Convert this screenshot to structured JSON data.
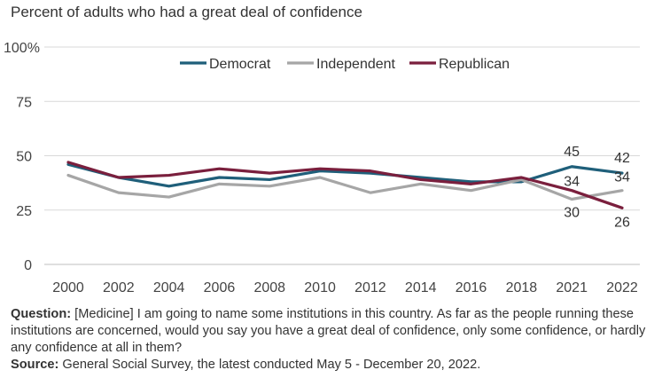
{
  "title": "Percent of adults who had a great deal of confidence",
  "chart_data": {
    "type": "line",
    "categories": [
      "2000",
      "2002",
      "2004",
      "2006",
      "2008",
      "2010",
      "2012",
      "2014",
      "2016",
      "2018",
      "2021",
      "2022"
    ],
    "y_ticks": [
      "0",
      "25",
      "50",
      "75",
      "100%"
    ],
    "ylim": [
      0,
      100
    ],
    "grid": true,
    "legend_position": "top-center",
    "series": [
      {
        "name": "Democrat",
        "color": "#1f5f7a",
        "values": [
          46,
          40,
          36,
          40,
          39,
          43,
          42,
          40,
          38,
          38,
          45,
          42
        ]
      },
      {
        "name": "Independent",
        "color": "#a6a6a6",
        "values": [
          41,
          33,
          31,
          37,
          36,
          40,
          33,
          37,
          34,
          39,
          30,
          34
        ]
      },
      {
        "name": "Republican",
        "color": "#7a1f3d",
        "values": [
          47,
          40,
          41,
          44,
          42,
          44,
          43,
          39,
          37,
          40,
          34,
          26
        ]
      }
    ],
    "data_labels": [
      {
        "series": "Democrat",
        "category": "2021",
        "text": "45"
      },
      {
        "series": "Democrat",
        "category": "2022",
        "text": "42"
      },
      {
        "series": "Republican",
        "category": "2021",
        "text": "34"
      },
      {
        "series": "Independent",
        "category": "2021",
        "text": "30"
      },
      {
        "series": "Independent",
        "category": "2022",
        "text": "34"
      },
      {
        "series": "Republican",
        "category": "2022",
        "text": "26"
      }
    ]
  },
  "notes": {
    "question_label": "Question:",
    "question_text": " [Medicine] I am going to name some institutions in this country. As far as the people running these institutions are concerned, would you say you have a great deal of confidence, only some confidence, or hardly any confidence at all in them?",
    "source_label": "Source:",
    "source_text": " General Social Survey, the latest conducted May 5 - December 20, 2022."
  }
}
